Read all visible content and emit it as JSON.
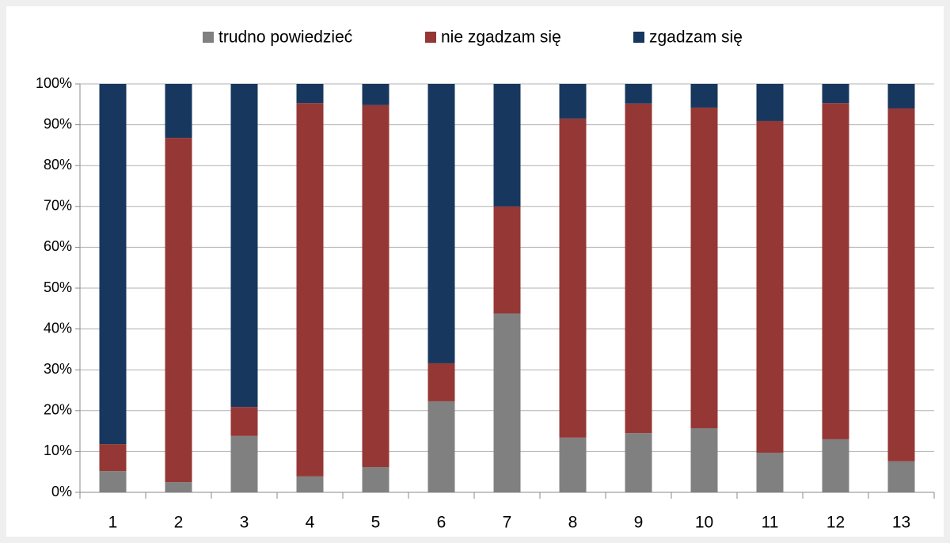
{
  "chart_data": {
    "type": "bar",
    "stacked": true,
    "categories": [
      "1",
      "2",
      "3",
      "4",
      "5",
      "6",
      "7",
      "8",
      "9",
      "10",
      "11",
      "12",
      "13"
    ],
    "series": [
      {
        "name": "trudno powiedzieć",
        "color": "#808080",
        "values": [
          5.2,
          2.5,
          13.8,
          3.9,
          6.2,
          22.3,
          43.8,
          13.4,
          14.5,
          15.7,
          9.7,
          13,
          7.6
        ]
      },
      {
        "name": "nie zgadzam się",
        "color": "#953735",
        "values": [
          6.6,
          84.3,
          7.1,
          91.4,
          88.6,
          9.3,
          26.2,
          78.1,
          80.7,
          78.5,
          81.2,
          82.3,
          86.4
        ]
      },
      {
        "name": "zgadzam się",
        "color": "#17375e",
        "values": [
          88.2,
          13.2,
          79.1,
          4.7,
          5.2,
          68.4,
          30,
          8.5,
          4.8,
          5.8,
          9.1,
          4.7,
          6
        ]
      }
    ],
    "ylim": [
      0,
      100
    ],
    "yticks": [
      {
        "value": 0,
        "label": "0%"
      },
      {
        "value": 10,
        "label": "10%"
      },
      {
        "value": 20,
        "label": "20%"
      },
      {
        "value": 30,
        "label": "30%"
      },
      {
        "value": 40,
        "label": "40%"
      },
      {
        "value": 50,
        "label": "50%"
      },
      {
        "value": 60,
        "label": "60%"
      },
      {
        "value": 70,
        "label": "70%"
      },
      {
        "value": 80,
        "label": "80%"
      },
      {
        "value": 90,
        "label": "90%"
      },
      {
        "value": 100,
        "label": "100%"
      }
    ],
    "grid": true,
    "legend": "top"
  }
}
